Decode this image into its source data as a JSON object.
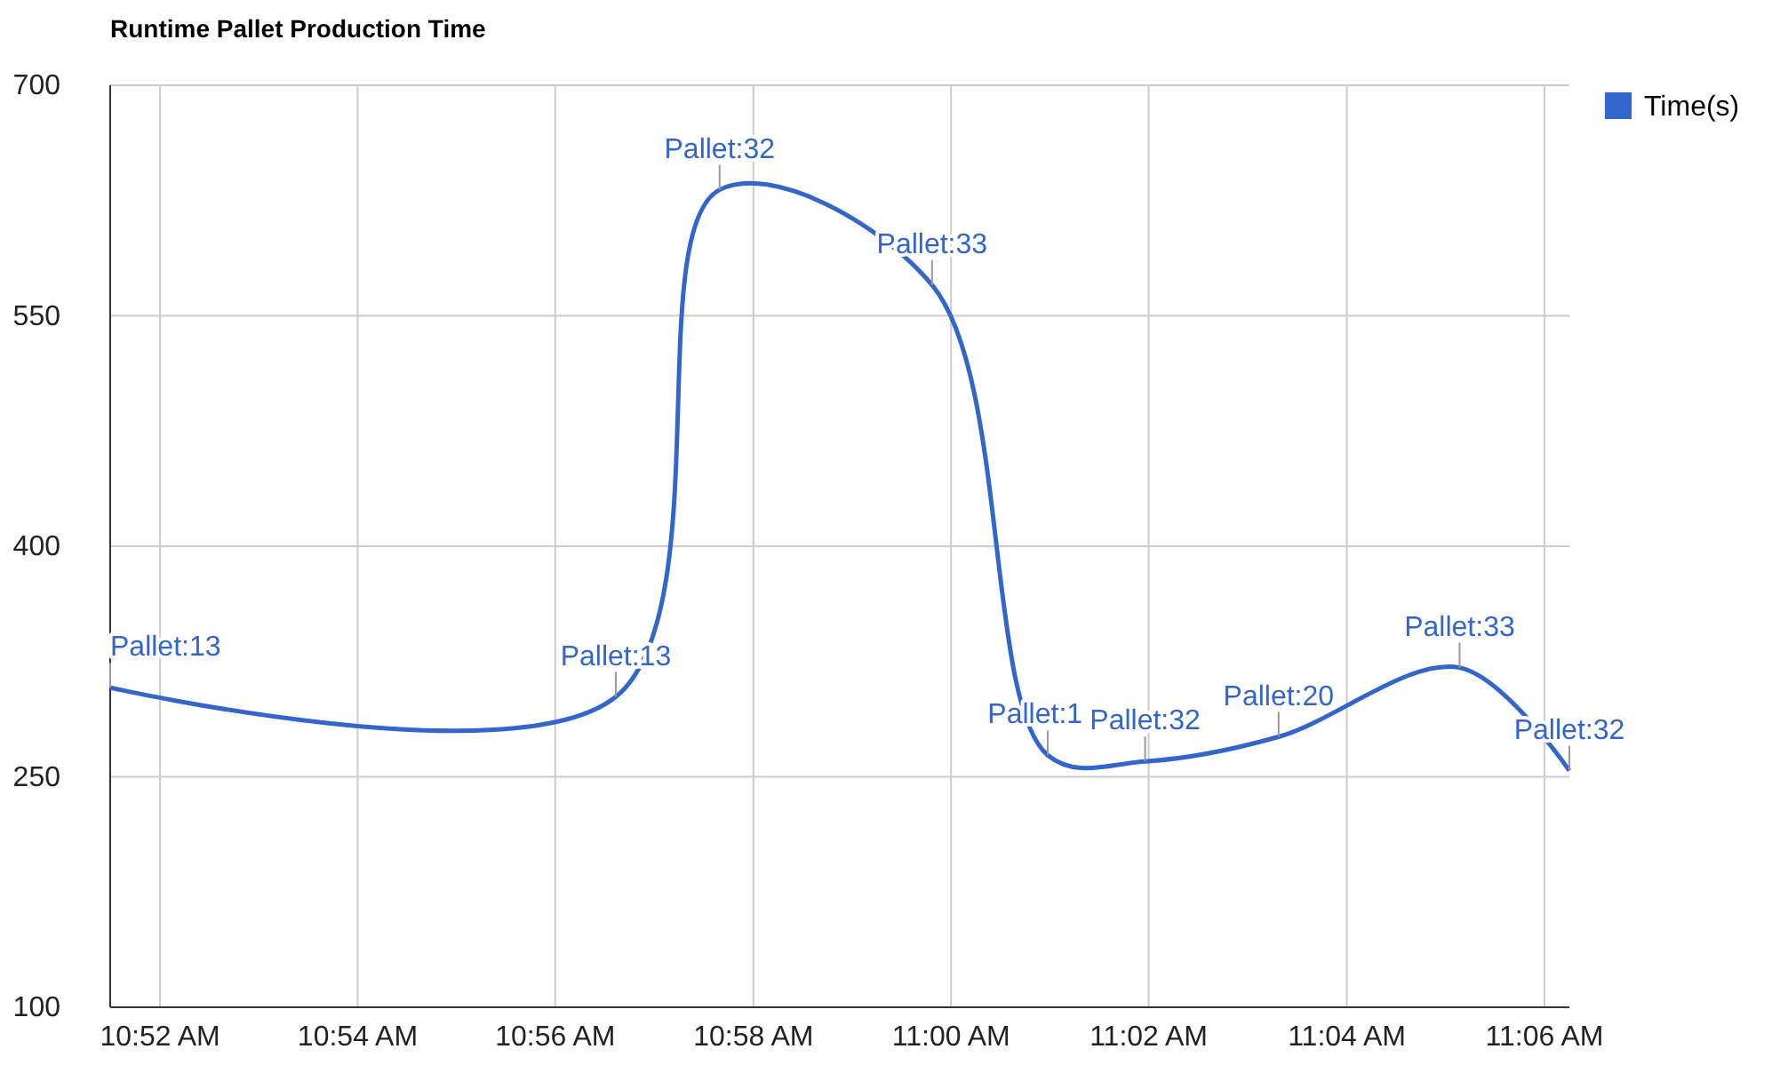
{
  "chart_data": {
    "type": "line",
    "title": "Runtime Pallet Production Time",
    "x": [
      10.8583,
      10.9435,
      10.961,
      10.9968,
      11.0163,
      11.0327,
      11.0552,
      11.0857,
      11.1042
    ],
    "series": [
      {
        "name": "Time(s)",
        "color": "#3366cc",
        "values": [
          308,
          302,
          632,
          570,
          264,
          260,
          276,
          321,
          254
        ]
      }
    ],
    "xlim": [
      10.8583,
      11.1042
    ],
    "xticks": [
      {
        "value": 10.8667,
        "label": "10:52 AM"
      },
      {
        "value": 10.9,
        "label": "10:54 AM"
      },
      {
        "value": 10.9333,
        "label": "10:56 AM"
      },
      {
        "value": 10.9667,
        "label": "10:58 AM"
      },
      {
        "value": 11,
        "label": "11:00 AM"
      },
      {
        "value": 11.0333,
        "label": "11:02 AM"
      },
      {
        "value": 11.0667,
        "label": "11:04 AM"
      },
      {
        "value": 11.1,
        "label": "11:06 AM"
      }
    ],
    "ylim": [
      100,
      700
    ],
    "yticks": [
      100,
      250,
      400,
      550,
      700
    ],
    "grid": true,
    "legend": "top right",
    "annotations": [
      {
        "text": "Pallet:13",
        "x": 10.8583,
        "y": 308
      },
      {
        "text": "Pallet:13",
        "x": 10.9435,
        "y": 302
      },
      {
        "text": "Pallet:32",
        "x": 10.961,
        "y": 632
      },
      {
        "text": "Pallet:33",
        "x": 10.9968,
        "y": 570
      },
      {
        "text": "Pallet:1",
        "x": 11.0163,
        "y": 264
      },
      {
        "text": "Pallet:32",
        "x": 11.0327,
        "y": 260
      },
      {
        "text": "Pallet:20",
        "x": 11.0552,
        "y": 276
      },
      {
        "text": "Pallet:33",
        "x": 11.0857,
        "y": 321
      },
      {
        "text": "Pallet:32",
        "x": 11.1042,
        "y": 254
      }
    ]
  }
}
